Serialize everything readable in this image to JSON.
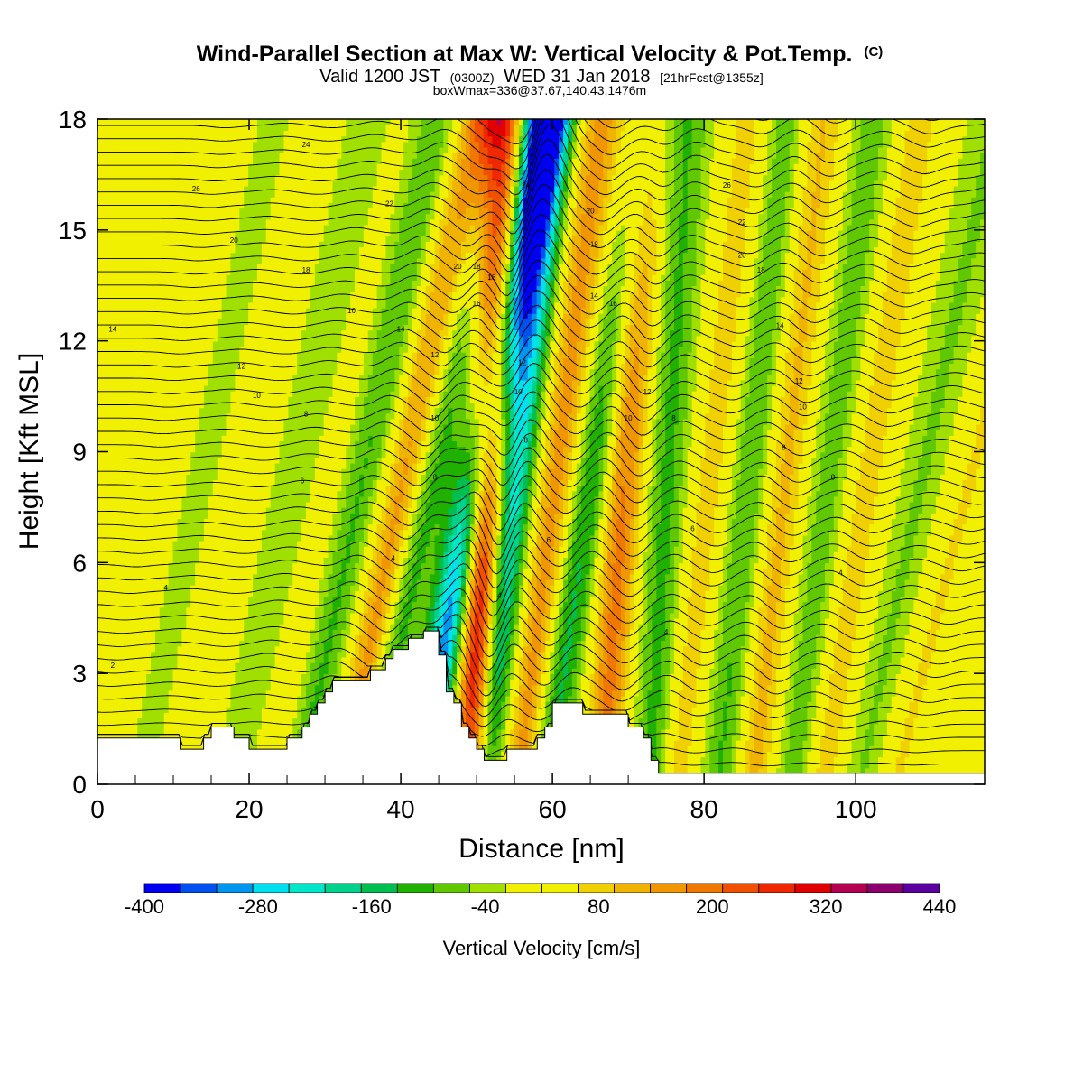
{
  "chart_data": {
    "type": "heatmap",
    "title": "Wind-Parallel Section at Max W: Vertical Velocity & Pot.Temp.",
    "title_units": "(C)",
    "subtitle_main": "Valid 1200 JST",
    "subtitle_z": "(0300Z)",
    "subtitle_date": "WED 31 Jan 2018",
    "subtitle_fcst": "[21hrFcst@1355z]",
    "subtitle2": "boxWmax=336@37.67,140.43,1476m",
    "xlabel": "Distance [nm]",
    "ylabel": "Height [Kft MSL]",
    "xlim": [
      0,
      117
    ],
    "ylim": [
      0,
      18
    ],
    "x_ticks": [
      0,
      20,
      40,
      60,
      80,
      100
    ],
    "y_ticks": [
      0,
      3,
      6,
      9,
      12,
      15,
      18
    ],
    "colorbar": {
      "label": "Vertical Velocity [cm/s]",
      "min": -400,
      "max": 440,
      "step": 40,
      "tick_values": [
        -400,
        -280,
        -160,
        -40,
        80,
        200,
        320,
        440
      ],
      "colors": [
        "#0000f0",
        "#0050f0",
        "#0096f0",
        "#00e0f0",
        "#00e6c8",
        "#00d28c",
        "#00be50",
        "#20b000",
        "#60c800",
        "#a0e000",
        "#f0f000",
        "#f0f000",
        "#f0d000",
        "#f0b400",
        "#f09600",
        "#f07800",
        "#f05000",
        "#f02800",
        "#e00000",
        "#b4004e",
        "#8c006e",
        "#5a00a0"
      ]
    },
    "terrain": [
      [
        0,
        1.25
      ],
      [
        11,
        1.25
      ],
      [
        11,
        0.95
      ],
      [
        14,
        0.95
      ],
      [
        14,
        1.25
      ],
      [
        15,
        1.25
      ],
      [
        15,
        1.55
      ],
      [
        18,
        1.55
      ],
      [
        18,
        1.25
      ],
      [
        20,
        1.25
      ],
      [
        20,
        0.95
      ],
      [
        25,
        0.95
      ],
      [
        25,
        1.25
      ],
      [
        27,
        1.25
      ],
      [
        27,
        1.55
      ],
      [
        28,
        1.55
      ],
      [
        28,
        1.9
      ],
      [
        29,
        1.9
      ],
      [
        29,
        2.2
      ],
      [
        30,
        2.2
      ],
      [
        30,
        2.5
      ],
      [
        31,
        2.5
      ],
      [
        31,
        2.8
      ],
      [
        36,
        2.8
      ],
      [
        36,
        3.1
      ],
      [
        38,
        3.1
      ],
      [
        38,
        3.4
      ],
      [
        39,
        3.4
      ],
      [
        39,
        3.65
      ],
      [
        41,
        3.65
      ],
      [
        41,
        3.95
      ],
      [
        43,
        3.95
      ],
      [
        43,
        4.15
      ],
      [
        45,
        4.15
      ],
      [
        45,
        3.5
      ],
      [
        46,
        3.5
      ],
      [
        46,
        2.5
      ],
      [
        47,
        2.5
      ],
      [
        47,
        2.2
      ],
      [
        48,
        2.2
      ],
      [
        48,
        1.55
      ],
      [
        49,
        1.55
      ],
      [
        49,
        1.25
      ],
      [
        50,
        1.25
      ],
      [
        50,
        0.95
      ],
      [
        51,
        0.95
      ],
      [
        51,
        0.65
      ],
      [
        54,
        0.65
      ],
      [
        54,
        0.95
      ],
      [
        58,
        0.95
      ],
      [
        58,
        1.25
      ],
      [
        59,
        1.25
      ],
      [
        59,
        1.55
      ],
      [
        60,
        1.55
      ],
      [
        60,
        2.2
      ],
      [
        64,
        2.2
      ],
      [
        64,
        1.9
      ],
      [
        70,
        1.9
      ],
      [
        70,
        1.55
      ],
      [
        72,
        1.55
      ],
      [
        72,
        1.25
      ],
      [
        73,
        1.25
      ],
      [
        73,
        0.65
      ],
      [
        74,
        0.65
      ],
      [
        74,
        0.3
      ],
      [
        117,
        0.3
      ]
    ],
    "w_peaks": [
      {
        "x0": 1.5,
        "slope": 1.0,
        "amp": 25
      },
      {
        "x0": 9.5,
        "slope": 1.0,
        "amp": -25
      },
      {
        "x0": 15.5,
        "slope": 1.0,
        "amp": 25
      },
      {
        "x0": 21.5,
        "slope": 1.0,
        "amp": -45
      },
      {
        "x0": 28,
        "slope": 1.0,
        "amp": 30
      },
      {
        "x0": 30.5,
        "slope": 1.0,
        "amp": -110
      },
      {
        "x0": 36.5,
        "slope": 1.0,
        "amp": 180
      },
      {
        "x0": 39.5,
        "slope": 1.0,
        "amp": -130
      },
      {
        "x0": 46,
        "slope": 0.9,
        "amp": -330
      },
      {
        "x0": 50.5,
        "slope": 0.25,
        "amp": 440
      },
      {
        "x0": 52.5,
        "slope": 0.5,
        "amp": -320
      },
      {
        "x0": 58,
        "slope": 0.6,
        "amp": 170
      },
      {
        "x0": 62,
        "slope": 0.75,
        "amp": -150
      },
      {
        "x0": 68,
        "slope": 0.35,
        "amp": 200
      },
      {
        "x0": 74,
        "slope": 0.25,
        "amp": -110
      },
      {
        "x0": 78.5,
        "slope": 0.55,
        "amp": 90
      },
      {
        "x0": 84,
        "slope": 0.5,
        "amp": -100
      },
      {
        "x0": 88.5,
        "slope": 0.5,
        "amp": 120
      },
      {
        "x0": 94,
        "slope": 0.6,
        "amp": -80
      },
      {
        "x0": 98.5,
        "slope": 0.7,
        "amp": 90
      },
      {
        "x0": 104.5,
        "slope": 1.0,
        "amp": -60
      },
      {
        "x0": 110,
        "slope": 1.2,
        "amp": 70
      }
    ],
    "theta_levels": [
      2,
      4,
      6,
      8,
      10,
      12,
      14,
      16,
      18,
      20,
      22,
      24,
      26,
      28,
      30,
      32,
      34
    ],
    "theta_labels": [
      {
        "x": 2,
        "y": 3.2,
        "text": "2"
      },
      {
        "x": 9,
        "y": 5.3,
        "text": "4"
      },
      {
        "x": 39,
        "y": 6.1,
        "text": "4"
      },
      {
        "x": 53,
        "y": 5.1,
        "text": "4"
      },
      {
        "x": 75,
        "y": 4.1,
        "text": "4"
      },
      {
        "x": 98,
        "y": 5.7,
        "text": "4"
      },
      {
        "x": 27,
        "y": 8.2,
        "text": "6"
      },
      {
        "x": 59.5,
        "y": 6.6,
        "text": "6"
      },
      {
        "x": 78.5,
        "y": 6.9,
        "text": "6"
      },
      {
        "x": 44.5,
        "y": 8.3,
        "text": "8"
      },
      {
        "x": 27.5,
        "y": 10.0,
        "text": "8"
      },
      {
        "x": 56.5,
        "y": 9.3,
        "text": "8"
      },
      {
        "x": 76,
        "y": 9.9,
        "text": "8"
      },
      {
        "x": 90.5,
        "y": 9.1,
        "text": "8"
      },
      {
        "x": 97,
        "y": 8.3,
        "text": "8"
      },
      {
        "x": 44.5,
        "y": 9.9,
        "text": "10"
      },
      {
        "x": 21,
        "y": 10.5,
        "text": "10"
      },
      {
        "x": 55.5,
        "y": 10.6,
        "text": "10"
      },
      {
        "x": 70,
        "y": 9.9,
        "text": "10"
      },
      {
        "x": 93,
        "y": 10.2,
        "text": "10"
      },
      {
        "x": 44.5,
        "y": 11.6,
        "text": "12"
      },
      {
        "x": 19,
        "y": 11.3,
        "text": "12"
      },
      {
        "x": 56,
        "y": 11.4,
        "text": "12"
      },
      {
        "x": 72.5,
        "y": 10.6,
        "text": "12"
      },
      {
        "x": 92.5,
        "y": 10.9,
        "text": "12"
      },
      {
        "x": 40,
        "y": 12.3,
        "text": "14"
      },
      {
        "x": 2,
        "y": 12.3,
        "text": "14"
      },
      {
        "x": 65.5,
        "y": 13.2,
        "text": "14"
      },
      {
        "x": 90,
        "y": 12.4,
        "text": "14"
      },
      {
        "x": 33.5,
        "y": 12.8,
        "text": "16"
      },
      {
        "x": 50,
        "y": 13.0,
        "text": "16"
      },
      {
        "x": 68,
        "y": 13.0,
        "text": "16"
      },
      {
        "x": 27.5,
        "y": 13.9,
        "text": "18"
      },
      {
        "x": 52,
        "y": 13.7,
        "text": "18"
      },
      {
        "x": 65.5,
        "y": 14.6,
        "text": "18"
      },
      {
        "x": 87.5,
        "y": 13.9,
        "text": "18"
      },
      {
        "x": 50,
        "y": 14.0,
        "text": "18"
      },
      {
        "x": 47.5,
        "y": 14.0,
        "text": "20"
      },
      {
        "x": 18,
        "y": 14.7,
        "text": "20"
      },
      {
        "x": 65,
        "y": 15.5,
        "text": "20"
      },
      {
        "x": 85,
        "y": 14.3,
        "text": "20"
      },
      {
        "x": 38.5,
        "y": 15.7,
        "text": "22"
      },
      {
        "x": 85,
        "y": 15.2,
        "text": "22"
      },
      {
        "x": 56.5,
        "y": 16.2,
        "text": "24"
      },
      {
        "x": 27.5,
        "y": 17.3,
        "text": "24"
      },
      {
        "x": 13,
        "y": 16.1,
        "text": "26"
      },
      {
        "x": 83,
        "y": 16.2,
        "text": "26"
      }
    ]
  }
}
